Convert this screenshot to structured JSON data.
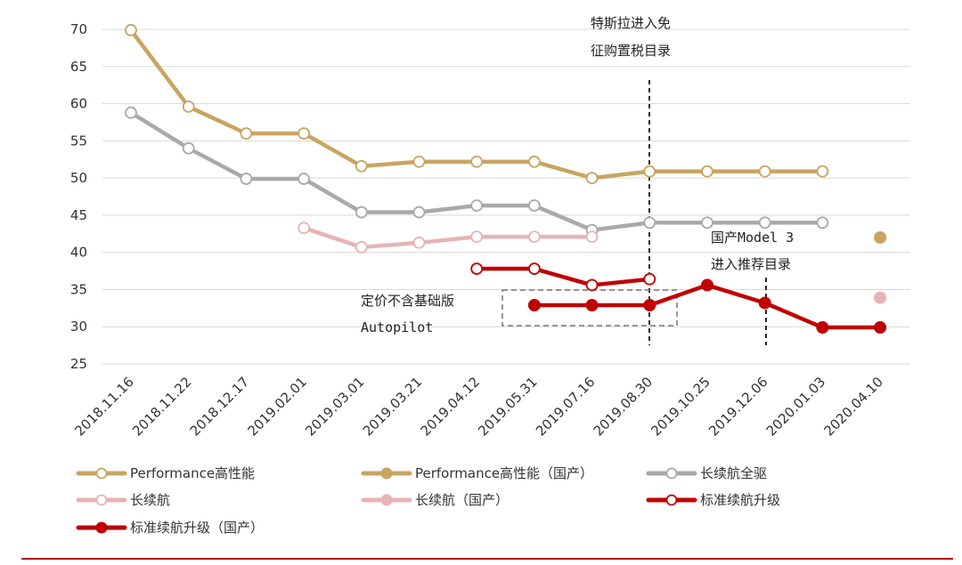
{
  "chart_data": {
    "type": "line",
    "categories": [
      "2018.11.16",
      "2018.11.22",
      "2018.12.17",
      "2019.02.01",
      "2019.03.01",
      "2019.03.21",
      "2019.04.12",
      "2019.05.31",
      "2019.07.16",
      "2019.08.30",
      "2019.10.25",
      "2019.12.06",
      "2020.01.03",
      "2020.04.10"
    ],
    "ylim": [
      25,
      70
    ],
    "yticks": [
      25,
      30,
      35,
      40,
      45,
      50,
      55,
      60,
      65,
      70
    ],
    "grid": true,
    "legend_position": "bottom",
    "series": [
      {
        "name": "Performance高性能",
        "color": "#c9a461",
        "marker": "hollow",
        "values": [
          69.9,
          59.6,
          56.0,
          56.0,
          51.6,
          52.2,
          52.2,
          52.2,
          50.0,
          50.9,
          50.9,
          50.9,
          50.9,
          null
        ]
      },
      {
        "name": "Performance高性能（国产）",
        "color": "#c9a461",
        "marker": "filled",
        "values": [
          null,
          null,
          null,
          null,
          null,
          null,
          null,
          null,
          null,
          null,
          null,
          null,
          null,
          42.0
        ]
      },
      {
        "name": "长续航全驱",
        "color": "#a9a9a9",
        "marker": "hollow",
        "values": [
          58.8,
          54.0,
          49.9,
          49.9,
          45.4,
          45.4,
          46.3,
          46.3,
          43.0,
          44.0,
          44.0,
          44.0,
          44.0,
          null
        ]
      },
      {
        "name": "长续航",
        "color": "#e6b4b3",
        "marker": "hollow",
        "values": [
          null,
          null,
          null,
          43.3,
          40.7,
          41.3,
          42.1,
          42.1,
          42.1,
          null,
          null,
          null,
          null,
          null
        ]
      },
      {
        "name": "长续航（国产）",
        "color": "#e6b4b3",
        "marker": "filled",
        "values": [
          null,
          null,
          null,
          null,
          null,
          null,
          null,
          null,
          null,
          null,
          null,
          null,
          null,
          33.9
        ]
      },
      {
        "name": "标准续航升级",
        "color": "#c00000",
        "marker": "hollow",
        "values": [
          null,
          null,
          null,
          null,
          null,
          null,
          37.8,
          37.8,
          35.6,
          36.4,
          null,
          null,
          null,
          null
        ]
      },
      {
        "name": "标准续航升级（国产）",
        "color": "#c00000",
        "marker": "filled",
        "values": [
          null,
          null,
          null,
          null,
          null,
          null,
          null,
          32.9,
          32.9,
          32.9,
          35.6,
          33.2,
          29.9,
          29.9
        ]
      }
    ],
    "annotations": [
      {
        "lines": [
          "特斯拉进入免",
          "征购置税目录"
        ]
      },
      {
        "lines": [
          "国产Model 3",
          "进入推荐目录"
        ]
      },
      {
        "lines": [
          "定价不含基础版",
          "Autopilot"
        ]
      }
    ]
  }
}
